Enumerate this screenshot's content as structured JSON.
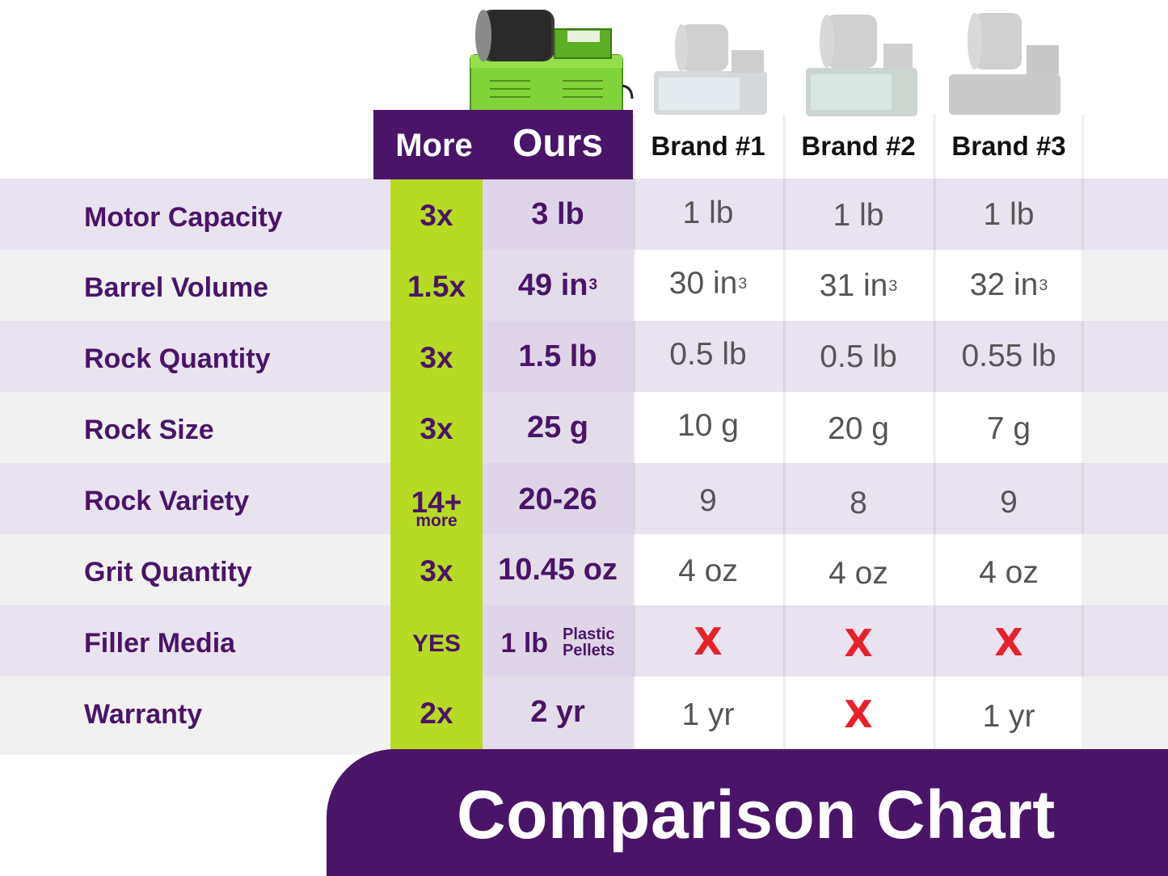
{
  "chart_data": {
    "type": "table",
    "title": "Comparison Chart",
    "columns": [
      "More",
      "Ours",
      "Brand #1",
      "Brand #2",
      "Brand #3"
    ],
    "rows": [
      {
        "label": "Motor Capacity",
        "more": "3x",
        "ours": "3 lb",
        "brand1": "1 lb",
        "brand2": "1 lb",
        "brand3": "1 lb"
      },
      {
        "label": "Barrel Volume",
        "more": "1.5x",
        "ours": "49 in",
        "ours_sup": "3",
        "brand1": "30 in",
        "brand1_sup": "3",
        "brand2": "31 in",
        "brand2_sup": "3",
        "brand3": "32 in",
        "brand3_sup": "3"
      },
      {
        "label": "Rock Quantity",
        "more": "3x",
        "ours": "1.5 lb",
        "brand1": "0.5 lb",
        "brand2": "0.5 lb",
        "brand3": "0.55 lb"
      },
      {
        "label": "Rock Size",
        "more": "3x",
        "ours": "25 g",
        "brand1": "10 g",
        "brand2": "20 g",
        "brand3": "7 g"
      },
      {
        "label": "Rock Variety",
        "more": "14+",
        "more_sub": "more",
        "ours": "20-26",
        "brand1": "9",
        "brand2": "8",
        "brand3": "9"
      },
      {
        "label": "Grit Quantity",
        "more": "3x",
        "ours": "10.45 oz",
        "brand1": "4 oz",
        "brand2": "4 oz",
        "brand3": "4 oz"
      },
      {
        "label": "Filler Media",
        "more": "YES",
        "ours": "1 lb",
        "ours_note_1": "Plastic",
        "ours_note_2": "Pellets",
        "brand1": "X",
        "brand2": "X",
        "brand3": "X"
      },
      {
        "label": "Warranty",
        "more": "2x",
        "ours": "2 yr",
        "brand1": "1 yr",
        "brand2": "X",
        "brand3": "1 yr"
      }
    ]
  },
  "colors": {
    "purple": "#4a1468",
    "lime": "#b6db22",
    "x_red": "#e8202a",
    "ours_product": "#7fd43a"
  },
  "icons": {
    "ours_product": "green-rock-tumbler-image",
    "brand1_product": "gray-rock-tumbler-image",
    "brand2_product": "gray-rock-tumbler-image",
    "brand3_product": "gray-rock-tumbler-image"
  }
}
